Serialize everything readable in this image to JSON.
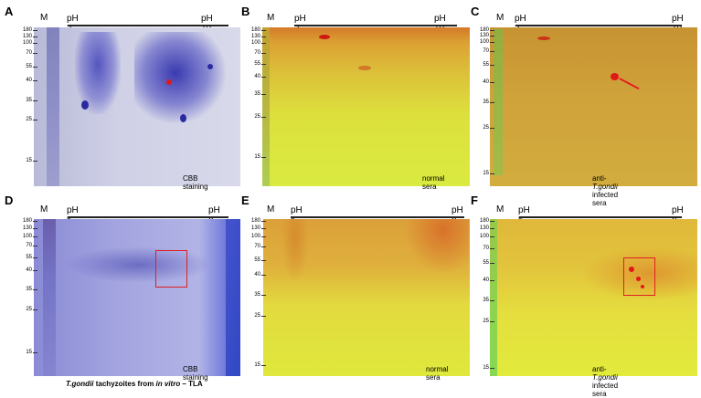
{
  "figure": {
    "panels": [
      {
        "id": "A",
        "label": "A",
        "marker": "M",
        "ph_left": "pH 3",
        "ph_right": "pH 10",
        "caption": "CBB staining",
        "type": "cbb",
        "mw": [
          "180",
          "130",
          "100",
          "70",
          "55",
          "40",
          "35",
          "25",
          "15"
        ]
      },
      {
        "id": "B",
        "label": "B",
        "marker": "M",
        "ph_left": "pH 3",
        "ph_right": "pH 10",
        "caption": "normal sera",
        "type": "blot",
        "mw": [
          "180",
          "130",
          "100",
          "70",
          "55",
          "40",
          "35",
          "25",
          "15"
        ]
      },
      {
        "id": "C",
        "label": "C",
        "marker": "M",
        "ph_left": "pH 3",
        "ph_right": "pH 10",
        "caption_pre": "anti-",
        "caption_it": "T.gondii",
        "caption_post": " infected sera",
        "type": "blot",
        "mw": [
          "180",
          "130",
          "100",
          "70",
          "55",
          "40",
          "35",
          "25",
          "15"
        ]
      },
      {
        "id": "D",
        "label": "D",
        "marker": "M",
        "ph_left": "pH 5",
        "ph_right": "pH 8",
        "caption": "CBB staining",
        "type": "cbb",
        "mw": [
          "180",
          "130",
          "100",
          "70",
          "55",
          "40",
          "35",
          "25",
          "15"
        ]
      },
      {
        "id": "E",
        "label": "E",
        "marker": "M",
        "ph_left": "pH 5",
        "ph_right": "pH 8",
        "caption": "normal sera",
        "type": "blot",
        "mw": [
          "180",
          "130",
          "100",
          "70",
          "55",
          "40",
          "35",
          "25",
          "15"
        ]
      },
      {
        "id": "F",
        "label": "F",
        "marker": "M",
        "ph_left": "pH 5",
        "ph_right": "pH 8",
        "caption_pre": "anti-",
        "caption_it": "T.gondii",
        "caption_post": " infected sera",
        "type": "blot",
        "mw": [
          "180",
          "130",
          "100",
          "70",
          "55",
          "40",
          "35",
          "25",
          "15"
        ]
      }
    ],
    "bottom_caption": {
      "it1": "T.gondii",
      "t1": " tachyzoites from ",
      "it2": "in vitro",
      "t2": " – TLA"
    },
    "colors": {
      "cbb_bg": "#c9cbe6",
      "cbb_spot": "#2a2aa8",
      "blot_bg": "#e6ea3a",
      "blot_top": "#e59a2a",
      "blot_spot": "#e01818",
      "marker_green": "#5fd05a",
      "box": "#e02020"
    }
  }
}
